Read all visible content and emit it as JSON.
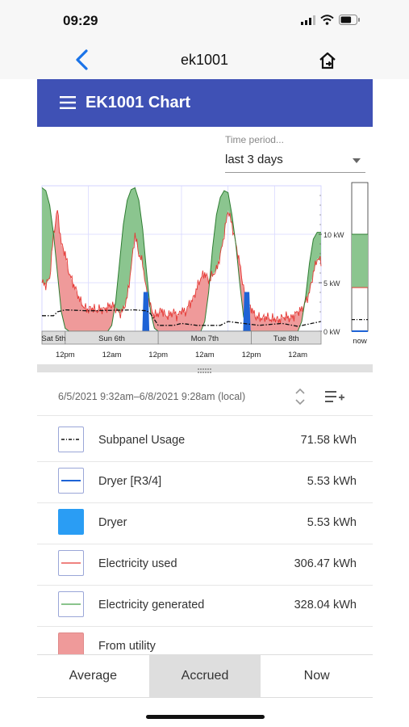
{
  "status_bar": {
    "time": "09:29",
    "battery_level": 0.7
  },
  "nav": {
    "title": "ek1001",
    "back_icon": "chevron-left-icon",
    "share_icon": "share-icon"
  },
  "app_bar": {
    "title": "EK1001 Chart",
    "color": "#3f51b5"
  },
  "time_period": {
    "label": "Time period...",
    "value": "last 3 days"
  },
  "chart_data": {
    "type": "area",
    "y_axis": {
      "ticks": [
        "0 kW",
        "5 kW",
        "10 kW"
      ],
      "ylim": [
        0,
        15
      ],
      "unit": "kW"
    },
    "day_labels": [
      "Sat 5th",
      "Sun 6th",
      "Mon 7th",
      "Tue 8th"
    ],
    "time_labels": [
      "12pm",
      "12am",
      "12pm",
      "12am",
      "12pm",
      "12am"
    ],
    "now_label": "now",
    "colors": {
      "used": "#e53935",
      "generated": "#43a047",
      "from_utility_fill": "#ef9a9a",
      "generated_fill": "#8bc58f",
      "dryer": "#1e63d6",
      "subpanel": "#111111"
    },
    "hours": 72,
    "series": [
      {
        "name": "Electricity generated",
        "points": [
          [
            0,
            14.8
          ],
          [
            1,
            14.5
          ],
          [
            2,
            13
          ],
          [
            3,
            10
          ],
          [
            4,
            6
          ],
          [
            5,
            2
          ],
          [
            6,
            0.3
          ],
          [
            7,
            0
          ],
          [
            17,
            0
          ],
          [
            18,
            0.6
          ],
          [
            19,
            3
          ],
          [
            20,
            7
          ],
          [
            21,
            11
          ],
          [
            22,
            13.5
          ],
          [
            23,
            14.6
          ],
          [
            24,
            14.8
          ],
          [
            25,
            13.5
          ],
          [
            26,
            10.5
          ],
          [
            27,
            6
          ],
          [
            28,
            2
          ],
          [
            29,
            0.3
          ],
          [
            30,
            0
          ],
          [
            41,
            0
          ],
          [
            42,
            1
          ],
          [
            43,
            4
          ],
          [
            44,
            8.5
          ],
          [
            45,
            12
          ],
          [
            46,
            13.8
          ],
          [
            47,
            14.5
          ],
          [
            48,
            14.3
          ],
          [
            49,
            12
          ],
          [
            50,
            9
          ],
          [
            51,
            5
          ],
          [
            52,
            1.5
          ],
          [
            53,
            0.2
          ],
          [
            54,
            0
          ],
          [
            66,
            0
          ],
          [
            67,
            1
          ],
          [
            68,
            3.5
          ],
          [
            69,
            7
          ],
          [
            70,
            9.5
          ],
          [
            71,
            10.2
          ],
          [
            72,
            10.2
          ]
        ]
      },
      {
        "name": "Electricity used",
        "points": [
          [
            0,
            5
          ],
          [
            1,
            4.8
          ],
          [
            2,
            5.5
          ],
          [
            3,
            10
          ],
          [
            4,
            12.5
          ],
          [
            5,
            9
          ],
          [
            6,
            8
          ],
          [
            7,
            6
          ],
          [
            8,
            5
          ],
          [
            9,
            4
          ],
          [
            10,
            3
          ],
          [
            11,
            2.4
          ],
          [
            12,
            2.2
          ],
          [
            13,
            2.4
          ],
          [
            14,
            2.1
          ],
          [
            15,
            2.3
          ],
          [
            16,
            2.2
          ],
          [
            17,
            2.5
          ],
          [
            18,
            2.7
          ],
          [
            19,
            2.4
          ],
          [
            20,
            1.8
          ],
          [
            21,
            2.2
          ],
          [
            22,
            3.5
          ],
          [
            23,
            6.5
          ],
          [
            24,
            10
          ],
          [
            25,
            8
          ],
          [
            26,
            7
          ],
          [
            27,
            4
          ],
          [
            28,
            2.5
          ],
          [
            29,
            1.6
          ],
          [
            30,
            1.8
          ],
          [
            31,
            2.2
          ],
          [
            32,
            1.5
          ],
          [
            33,
            1.7
          ],
          [
            34,
            2
          ],
          [
            35,
            1.5
          ],
          [
            36,
            2.2
          ],
          [
            37,
            1.9
          ],
          [
            38,
            2.8
          ],
          [
            39,
            3.3
          ],
          [
            40,
            4.5
          ],
          [
            41,
            5.5
          ],
          [
            42,
            6
          ],
          [
            43,
            5.2
          ],
          [
            44,
            5.8
          ],
          [
            45,
            6.3
          ],
          [
            46,
            7.8
          ],
          [
            47,
            10
          ],
          [
            48,
            12.5
          ],
          [
            49,
            11
          ],
          [
            50,
            9
          ],
          [
            51,
            7
          ],
          [
            52,
            4.5
          ],
          [
            53,
            2.6
          ],
          [
            54,
            2.4
          ],
          [
            55,
            1.5
          ],
          [
            56,
            1.4
          ],
          [
            57,
            1.3
          ],
          [
            58,
            1.5
          ],
          [
            59,
            1.2
          ],
          [
            60,
            1.3
          ],
          [
            61,
            1.1
          ],
          [
            62,
            1.4
          ],
          [
            63,
            1.5
          ],
          [
            64,
            1.3
          ],
          [
            65,
            1.6
          ],
          [
            66,
            2
          ],
          [
            67,
            2.2
          ],
          [
            68,
            3
          ],
          [
            69,
            4
          ],
          [
            70,
            6
          ],
          [
            71,
            7.5
          ],
          [
            72,
            7.2
          ]
        ]
      },
      {
        "name": "Subpanel Usage",
        "points": [
          [
            0,
            1.6
          ],
          [
            3,
            1.6
          ],
          [
            4,
            2
          ],
          [
            6,
            2.2
          ],
          [
            12,
            2.1
          ],
          [
            24,
            2.2
          ],
          [
            27,
            2.1
          ],
          [
            28,
            1.8
          ],
          [
            30,
            0.6
          ],
          [
            34,
            0.6
          ],
          [
            36,
            0.8
          ],
          [
            40,
            0.6
          ],
          [
            46,
            0.6
          ],
          [
            48,
            1
          ],
          [
            52,
            0.8
          ],
          [
            56,
            0.6
          ],
          [
            62,
            0.8
          ],
          [
            66,
            0.5
          ],
          [
            72,
            1
          ]
        ]
      },
      {
        "name": "Dryer",
        "points": [
          [
            26,
            0
          ],
          [
            26.3,
            4
          ],
          [
            27.3,
            4
          ],
          [
            27.6,
            0
          ],
          [
            52,
            0
          ],
          [
            52.3,
            4
          ],
          [
            53.4,
            4
          ],
          [
            53.7,
            0
          ]
        ]
      }
    ],
    "now_bar": {
      "used": 4.5,
      "generated": 10
    }
  },
  "range": {
    "text": "6/5/2021 9:32am–6/8/2021 9:28am (local)"
  },
  "legend": [
    {
      "name": "Subpanel Usage",
      "value": "71.58 kWh",
      "swatch": "dashdot"
    },
    {
      "name": "Dryer [R3/4]",
      "value": "5.53 kWh",
      "swatch": "blue-line"
    },
    {
      "name": "Dryer",
      "value": "5.53 kWh",
      "swatch": "blue-fill"
    },
    {
      "name": "Electricity used",
      "value": "306.47 kWh",
      "swatch": "red-line"
    },
    {
      "name": "Electricity generated",
      "value": "328.04 kWh",
      "swatch": "green-line"
    },
    {
      "name": "From utility",
      "value": "",
      "swatch": "pink-fill"
    }
  ],
  "tabs": [
    {
      "label": "Average",
      "selected": false
    },
    {
      "label": "Accrued",
      "selected": true
    },
    {
      "label": "Now",
      "selected": false
    }
  ]
}
